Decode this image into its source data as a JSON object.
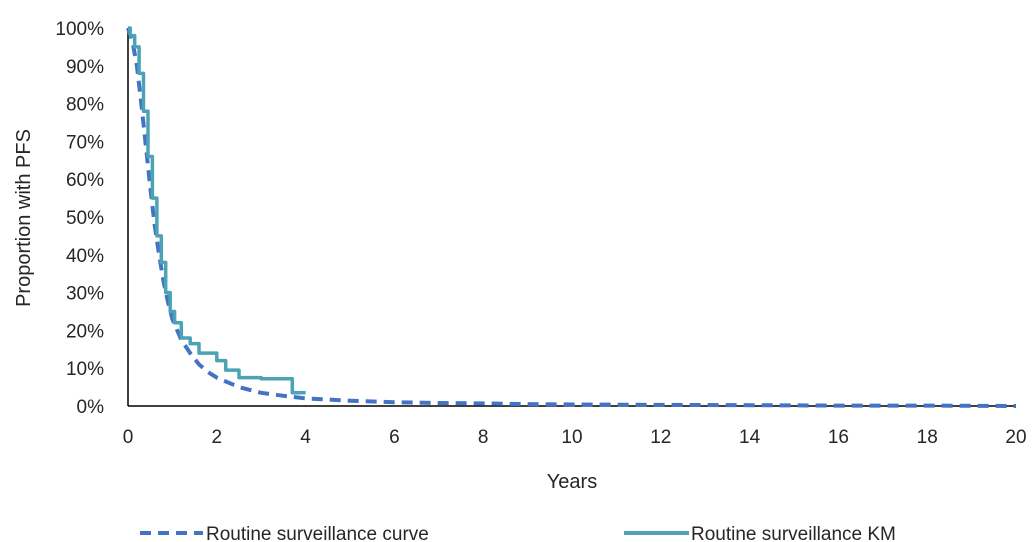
{
  "chart_data": {
    "type": "line",
    "title": "",
    "xlabel": "Years",
    "ylabel": "Proportion with PFS",
    "xlim": [
      0,
      20
    ],
    "ylim": [
      0,
      1
    ],
    "x_ticks": [
      "0",
      "2",
      "4",
      "6",
      "8",
      "10",
      "12",
      "14",
      "16",
      "18",
      "20"
    ],
    "y_ticks": [
      "0%",
      "10%",
      "20%",
      "30%",
      "40%",
      "50%",
      "60%",
      "70%",
      "80%",
      "90%",
      "100%"
    ],
    "grid": false,
    "legend_position": "bottom",
    "series": [
      {
        "name": "Routine surveillance curve",
        "style": "dashed",
        "color": "#4472C4",
        "x": [
          0,
          0.1,
          0.2,
          0.3,
          0.4,
          0.5,
          0.6,
          0.7,
          0.8,
          0.9,
          1.0,
          1.2,
          1.4,
          1.6,
          1.8,
          2.0,
          2.5,
          3.0,
          3.5,
          4.0,
          5.0,
          6.0,
          7.0,
          8.0,
          9.0,
          10,
          12,
          14,
          16,
          18,
          20
        ],
        "y": [
          1.0,
          0.965,
          0.9,
          0.8,
          0.69,
          0.58,
          0.48,
          0.4,
          0.33,
          0.275,
          0.23,
          0.175,
          0.14,
          0.11,
          0.09,
          0.075,
          0.05,
          0.035,
          0.027,
          0.02,
          0.014,
          0.01,
          0.008,
          0.007,
          0.005,
          0.004,
          0.003,
          0.002,
          0.001,
          0.001,
          0.0
        ]
      },
      {
        "name": "Routine surveillance KM",
        "style": "step",
        "color": "#4BA3B5",
        "x": [
          0,
          0.05,
          0.15,
          0.25,
          0.35,
          0.45,
          0.55,
          0.65,
          0.75,
          0.85,
          0.95,
          1.05,
          1.2,
          1.4,
          1.6,
          2.0,
          2.2,
          2.5,
          3.0,
          3.6,
          3.7,
          4.0
        ],
        "y": [
          1.0,
          0.98,
          0.95,
          0.88,
          0.78,
          0.66,
          0.55,
          0.45,
          0.38,
          0.3,
          0.25,
          0.22,
          0.18,
          0.165,
          0.14,
          0.12,
          0.095,
          0.075,
          0.072,
          0.072,
          0.035,
          0.035
        ]
      }
    ]
  }
}
